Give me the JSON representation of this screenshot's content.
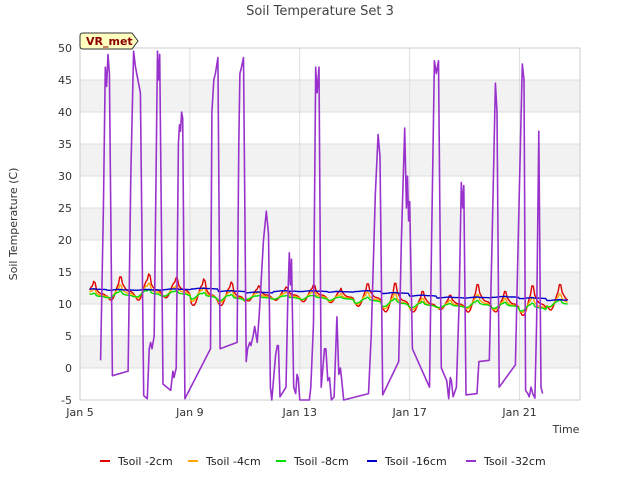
{
  "chart_data": {
    "type": "line",
    "title": "Soil Temperature Set 3",
    "xlabel": "Time",
    "ylabel": "Soil Temperature (C)",
    "station_label": "VR_met",
    "xlim": [
      0,
      18.2
    ],
    "ylim": [
      -5,
      50
    ],
    "y_ticks": [
      -5,
      0,
      5,
      10,
      15,
      20,
      25,
      30,
      35,
      40,
      45,
      50
    ],
    "x_ticks": [
      {
        "label": "Jan 5",
        "day": 0
      },
      {
        "label": "Jan 9",
        "day": 4
      },
      {
        "label": "Jan 13",
        "day": 8
      },
      {
        "label": "Jan 17",
        "day": 12
      },
      {
        "label": "Jan 21",
        "day": 16
      }
    ],
    "grid": true,
    "legend_position": "bottom",
    "series": [
      {
        "name": "Tsoil -2cm",
        "color": "#dd0000",
        "mean": [
          11.6,
          12.0,
          12.2,
          12.2,
          11.4,
          11.2,
          11.4,
          11.4,
          11.4,
          11.1,
          11.0,
          10.5,
          10.0,
          10.0,
          10.4,
          10.0,
          10.0,
          10.6
        ],
        "amplitude": [
          2.0,
          2.3,
          2.6,
          2.0,
          2.6,
          2.3,
          1.5,
          1.3,
          1.7,
          1.4,
          2.2,
          2.8,
          2.0,
          1.4,
          2.7,
          2.0,
          2.9,
          2.5
        ]
      },
      {
        "name": "Tsoil -4cm",
        "color": "#ffa500",
        "mean": [
          11.4,
          11.7,
          11.9,
          11.9,
          11.3,
          11.0,
          11.2,
          11.2,
          11.2,
          10.9,
          10.7,
          10.2,
          9.8,
          9.8,
          10.1,
          9.8,
          9.6,
          10.3
        ],
        "amplitude": [
          1.1,
          1.3,
          1.5,
          1.1,
          1.4,
          1.3,
          0.8,
          0.7,
          0.9,
          0.8,
          1.2,
          1.5,
          1.1,
          0.8,
          1.4,
          1.1,
          1.5,
          1.3
        ]
      },
      {
        "name": "Tsoil -8cm",
        "color": "#00dd00",
        "mean": [
          11.2,
          11.4,
          11.6,
          11.6,
          11.2,
          10.9,
          11.0,
          11.0,
          11.0,
          10.8,
          10.5,
          10.1,
          9.8,
          9.7,
          9.9,
          9.7,
          9.4,
          10.0
        ],
        "amplitude": [
          0.6,
          0.7,
          0.8,
          0.6,
          0.7,
          0.7,
          0.4,
          0.4,
          0.5,
          0.4,
          0.6,
          0.8,
          0.6,
          0.4,
          0.7,
          0.6,
          0.8,
          0.7
        ]
      },
      {
        "name": "Tsoil -16cm",
        "color": "#0000cc",
        "mean": [
          12.3,
          12.2,
          12.2,
          12.3,
          12.4,
          12.0,
          11.8,
          12.0,
          12.0,
          11.9,
          12.0,
          11.7,
          11.3,
          11.0,
          11.0,
          11.1,
          10.9,
          10.6
        ],
        "amplitude": [
          0.1,
          0.1,
          0.1,
          0.1,
          0.1,
          0.1,
          0.1,
          0.1,
          0.1,
          0.1,
          0.1,
          0.1,
          0.1,
          0.1,
          0.1,
          0.1,
          0.1,
          0.1
        ]
      },
      {
        "name": "Tsoil -32cm",
        "color": "#9932cc",
        "points": [
          [
            0.75,
            1.2
          ],
          [
            0.85,
            25
          ],
          [
            0.92,
            47
          ],
          [
            0.97,
            44
          ],
          [
            1.02,
            49
          ],
          [
            1.07,
            46
          ],
          [
            1.18,
            -1.2
          ],
          [
            1.75,
            -0.5
          ],
          [
            1.85,
            30
          ],
          [
            1.95,
            49.5
          ],
          [
            2.02,
            47
          ],
          [
            2.2,
            43
          ],
          [
            2.32,
            -4.3
          ],
          [
            2.45,
            -4.8
          ],
          [
            2.52,
            3
          ],
          [
            2.57,
            4
          ],
          [
            2.62,
            3
          ],
          [
            2.7,
            5
          ],
          [
            2.78,
            35
          ],
          [
            2.82,
            49.5
          ],
          [
            2.86,
            45
          ],
          [
            2.9,
            49
          ],
          [
            3.02,
            -2.5
          ],
          [
            3.3,
            -3.5
          ],
          [
            3.38,
            -0.5
          ],
          [
            3.42,
            -1.5
          ],
          [
            3.5,
            0
          ],
          [
            3.58,
            35
          ],
          [
            3.62,
            38
          ],
          [
            3.66,
            37
          ],
          [
            3.7,
            40
          ],
          [
            3.74,
            39
          ],
          [
            3.82,
            -4.8
          ],
          [
            4.75,
            3
          ],
          [
            4.8,
            40
          ],
          [
            4.87,
            45
          ],
          [
            4.93,
            46
          ],
          [
            5.02,
            48.5
          ],
          [
            5.1,
            3
          ],
          [
            5.72,
            4
          ],
          [
            5.78,
            35
          ],
          [
            5.82,
            46
          ],
          [
            5.88,
            47
          ],
          [
            5.95,
            48.5
          ],
          [
            6.05,
            1
          ],
          [
            6.1,
            3
          ],
          [
            6.18,
            4
          ],
          [
            6.22,
            3.5
          ],
          [
            6.3,
            5
          ],
          [
            6.36,
            6.5
          ],
          [
            6.45,
            4
          ],
          [
            6.52,
            8
          ],
          [
            6.68,
            20
          ],
          [
            6.78,
            24.5
          ],
          [
            6.86,
            21
          ],
          [
            6.93,
            -3
          ],
          [
            6.98,
            -5
          ],
          [
            7.12,
            2
          ],
          [
            7.18,
            3.5
          ],
          [
            7.22,
            3.5
          ],
          [
            7.28,
            -4.5
          ],
          [
            7.5,
            -3
          ],
          [
            7.56,
            10
          ],
          [
            7.62,
            18
          ],
          [
            7.66,
            13
          ],
          [
            7.7,
            17
          ],
          [
            7.78,
            -3
          ],
          [
            7.85,
            -4
          ],
          [
            7.9,
            -1
          ],
          [
            7.94,
            -1.5
          ],
          [
            8.0,
            -5
          ],
          [
            8.35,
            -5
          ],
          [
            8.4,
            -3
          ],
          [
            8.5,
            7
          ],
          [
            8.58,
            47
          ],
          [
            8.63,
            43
          ],
          [
            8.7,
            47
          ],
          [
            8.78,
            -3
          ],
          [
            8.9,
            3
          ],
          [
            8.95,
            3
          ],
          [
            9.02,
            -2
          ],
          [
            9.08,
            -1.5
          ],
          [
            9.15,
            -5
          ],
          [
            9.25,
            -4.5
          ],
          [
            9.35,
            8
          ],
          [
            9.42,
            -1
          ],
          [
            9.48,
            0
          ],
          [
            9.53,
            -2
          ],
          [
            9.6,
            -5
          ],
          [
            10.5,
            -4
          ],
          [
            10.6,
            5
          ],
          [
            10.75,
            27
          ],
          [
            10.85,
            36.5
          ],
          [
            10.92,
            33
          ],
          [
            11.02,
            -4.2
          ],
          [
            11.6,
            1
          ],
          [
            11.7,
            20
          ],
          [
            11.82,
            37.5
          ],
          [
            11.88,
            25
          ],
          [
            11.92,
            30
          ],
          [
            11.96,
            23
          ],
          [
            12.0,
            26
          ],
          [
            12.1,
            3
          ],
          [
            12.72,
            -3
          ],
          [
            12.8,
            20
          ],
          [
            12.9,
            48
          ],
          [
            12.97,
            46
          ],
          [
            13.05,
            48
          ],
          [
            13.15,
            0
          ],
          [
            13.35,
            -2
          ],
          [
            13.42,
            -4.8
          ],
          [
            13.48,
            -1.5
          ],
          [
            13.52,
            -2
          ],
          [
            13.58,
            -4.5
          ],
          [
            13.7,
            -3
          ],
          [
            13.8,
            10
          ],
          [
            13.88,
            29
          ],
          [
            13.93,
            25
          ],
          [
            13.97,
            28.5
          ],
          [
            14.05,
            -4.2
          ],
          [
            14.45,
            -4
          ],
          [
            14.52,
            1
          ],
          [
            14.9,
            1.2
          ],
          [
            15.0,
            20
          ],
          [
            15.12,
            44.5
          ],
          [
            15.18,
            40
          ],
          [
            15.26,
            -3
          ],
          [
            15.85,
            0.5
          ],
          [
            15.95,
            20
          ],
          [
            16.1,
            47.5
          ],
          [
            16.16,
            45
          ],
          [
            16.22,
            -3.5
          ],
          [
            16.3,
            -4
          ],
          [
            16.35,
            -4.5
          ],
          [
            16.42,
            -3
          ],
          [
            16.48,
            -4
          ],
          [
            16.56,
            -4.7
          ],
          [
            16.62,
            7
          ],
          [
            16.7,
            37
          ],
          [
            16.78,
            -3
          ],
          [
            16.84,
            -4
          ]
        ]
      }
    ]
  }
}
